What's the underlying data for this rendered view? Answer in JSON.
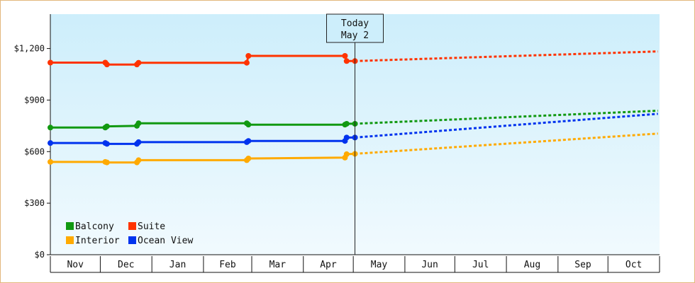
{
  "chart_data": {
    "type": "line",
    "title": "",
    "xlabel": "",
    "ylabel": "",
    "ylim": [
      0,
      1400
    ],
    "yticks": [
      {
        "value": 0,
        "label": "$0"
      },
      {
        "value": 300,
        "label": "$300"
      },
      {
        "value": 600,
        "label": "$600"
      },
      {
        "value": 900,
        "label": "$900"
      },
      {
        "value": 1200,
        "label": "$1,200"
      }
    ],
    "x_axis": {
      "start": "2023-11-01",
      "end": "2024-10-31",
      "months": [
        {
          "label": "Nov",
          "start": "2023-11-01"
        },
        {
          "label": "Dec",
          "start": "2023-12-01"
        },
        {
          "label": "Jan",
          "start": "2024-01-01"
        },
        {
          "label": "Feb",
          "start": "2024-02-01"
        },
        {
          "label": "Mar",
          "start": "2024-03-01"
        },
        {
          "label": "Apr",
          "start": "2024-04-01"
        },
        {
          "label": "May",
          "start": "2024-05-01"
        },
        {
          "label": "Jun",
          "start": "2024-06-01"
        },
        {
          "label": "Jul",
          "start": "2024-07-01"
        },
        {
          "label": "Aug",
          "start": "2024-08-01"
        },
        {
          "label": "Sep",
          "start": "2024-09-01"
        },
        {
          "label": "Oct",
          "start": "2024-10-01"
        }
      ]
    },
    "today": {
      "date": "2024-05-02",
      "label_top": "Today",
      "label_bottom": "May 2"
    },
    "grid": false,
    "legend_position": "bottom-left",
    "series": [
      {
        "name": "Suite",
        "color": "#ff3300",
        "history": [
          {
            "x": "2023-11-01",
            "y": 1118
          },
          {
            "x": "2023-12-04",
            "y": 1118
          },
          {
            "x": "2023-12-05",
            "y": 1107
          },
          {
            "x": "2023-12-23",
            "y": 1107
          },
          {
            "x": "2023-12-24",
            "y": 1117
          },
          {
            "x": "2024-02-27",
            "y": 1117
          },
          {
            "x": "2024-02-28",
            "y": 1157
          },
          {
            "x": "2024-04-26",
            "y": 1157
          },
          {
            "x": "2024-04-27",
            "y": 1127
          },
          {
            "x": "2024-05-02",
            "y": 1127
          }
        ],
        "forecast": [
          {
            "x": "2024-05-02",
            "y": 1127
          },
          {
            "x": "2024-10-31",
            "y": 1183
          }
        ]
      },
      {
        "name": "Balcony",
        "color": "#119911",
        "history": [
          {
            "x": "2023-11-01",
            "y": 740
          },
          {
            "x": "2023-12-04",
            "y": 740
          },
          {
            "x": "2023-12-05",
            "y": 747
          },
          {
            "x": "2023-12-23",
            "y": 750
          },
          {
            "x": "2023-12-24",
            "y": 765
          },
          {
            "x": "2024-02-27",
            "y": 765
          },
          {
            "x": "2024-02-28",
            "y": 757
          },
          {
            "x": "2024-04-26",
            "y": 757
          },
          {
            "x": "2024-04-27",
            "y": 762
          },
          {
            "x": "2024-05-02",
            "y": 762
          }
        ],
        "forecast": [
          {
            "x": "2024-05-02",
            "y": 762
          },
          {
            "x": "2024-10-31",
            "y": 838
          }
        ]
      },
      {
        "name": "Ocean View",
        "color": "#0033ee",
        "history": [
          {
            "x": "2023-11-01",
            "y": 650
          },
          {
            "x": "2023-12-04",
            "y": 650
          },
          {
            "x": "2023-12-05",
            "y": 645
          },
          {
            "x": "2023-12-23",
            "y": 645
          },
          {
            "x": "2023-12-24",
            "y": 655
          },
          {
            "x": "2024-02-27",
            "y": 655
          },
          {
            "x": "2024-02-28",
            "y": 662
          },
          {
            "x": "2024-04-26",
            "y": 662
          },
          {
            "x": "2024-04-27",
            "y": 682
          },
          {
            "x": "2024-05-02",
            "y": 682
          }
        ],
        "forecast": [
          {
            "x": "2024-05-02",
            "y": 682
          },
          {
            "x": "2024-10-31",
            "y": 820
          }
        ]
      },
      {
        "name": "Interior",
        "color": "#ffaa00",
        "history": [
          {
            "x": "2023-11-01",
            "y": 540
          },
          {
            "x": "2023-12-04",
            "y": 540
          },
          {
            "x": "2023-12-05",
            "y": 537
          },
          {
            "x": "2023-12-23",
            "y": 537
          },
          {
            "x": "2023-12-24",
            "y": 550
          },
          {
            "x": "2024-02-27",
            "y": 550
          },
          {
            "x": "2024-02-28",
            "y": 560
          },
          {
            "x": "2024-04-26",
            "y": 565
          },
          {
            "x": "2024-04-27",
            "y": 585
          },
          {
            "x": "2024-05-02",
            "y": 587
          }
        ],
        "forecast": [
          {
            "x": "2024-05-02",
            "y": 587
          },
          {
            "x": "2024-10-31",
            "y": 705
          }
        ]
      }
    ],
    "legend": {
      "rows": [
        [
          {
            "name": "Balcony",
            "color": "#119911"
          },
          {
            "name": "Suite",
            "color": "#ff3300"
          }
        ],
        [
          {
            "name": "Interior",
            "color": "#ffaa00"
          },
          {
            "name": "Ocean View",
            "color": "#0033ee"
          }
        ]
      ]
    }
  }
}
